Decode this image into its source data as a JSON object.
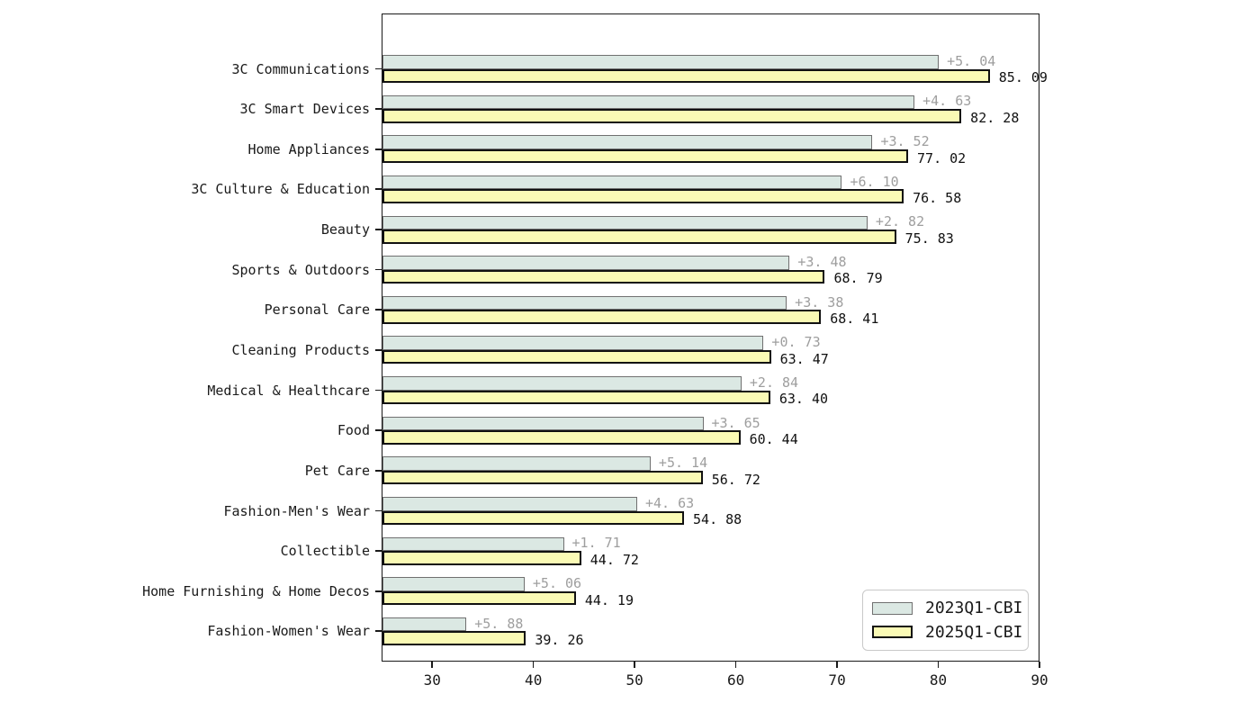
{
  "chart_data": {
    "type": "bar",
    "orientation": "horizontal",
    "title": "",
    "xlabel": "",
    "ylabel": "",
    "xlim": [
      25,
      90
    ],
    "x_ticks": [
      30,
      40,
      50,
      60,
      70,
      80,
      90
    ],
    "grid": false,
    "categories": [
      "3C Communications",
      "3C Smart Devices",
      "Home Appliances",
      "3C Culture & Education",
      "Beauty",
      "Sports & Outdoors",
      "Personal Care",
      "Cleaning Products",
      "Medical & Healthcare",
      "Food",
      "Pet Care",
      "Fashion-Men's Wear",
      "Collectible",
      "Home Furnishing & Home Decos",
      "Fashion-Women's Wear"
    ],
    "series": [
      {
        "name": "2023Q1-CBI",
        "color": "#dbe8e3",
        "border_color": "#707070",
        "values": [
          80.05,
          77.65,
          73.5,
          70.48,
          73.01,
          65.31,
          65.03,
          62.74,
          60.56,
          56.79,
          51.58,
          50.25,
          43.01,
          39.13,
          33.38
        ]
      },
      {
        "name": "2025Q1-CBI",
        "color": "#fafab5",
        "border_color": "#111111",
        "values": [
          85.09,
          82.28,
          77.02,
          76.58,
          75.83,
          68.79,
          68.41,
          63.47,
          63.4,
          60.44,
          56.72,
          54.88,
          44.72,
          44.19,
          39.26
        ]
      }
    ],
    "delta_labels": [
      "+5. 04",
      "+4. 63",
      "+3. 52",
      "+6. 10",
      "+2. 82",
      "+3. 48",
      "+3. 38",
      "+0. 73",
      "+2. 84",
      "+3. 65",
      "+5. 14",
      "+4. 63",
      "+1. 71",
      "+5. 06",
      "+5. 88"
    ],
    "value_labels": [
      "85. 09",
      "82. 28",
      "77. 02",
      "76. 58",
      "75. 83",
      "68. 79",
      "68. 41",
      "63. 47",
      "63. 40",
      "60. 44",
      "56. 72",
      "54. 88",
      "44. 72",
      "44. 19",
      "39. 26"
    ],
    "legend": {
      "position": "lower right",
      "entries": [
        "2023Q1-CBI",
        "2025Q1-CBI"
      ]
    },
    "colors": {
      "delta_text": "#9e9e9e",
      "value_text": "#111111",
      "axis": "#1a1a1a",
      "legend_border": "#c9c9c9"
    }
  }
}
